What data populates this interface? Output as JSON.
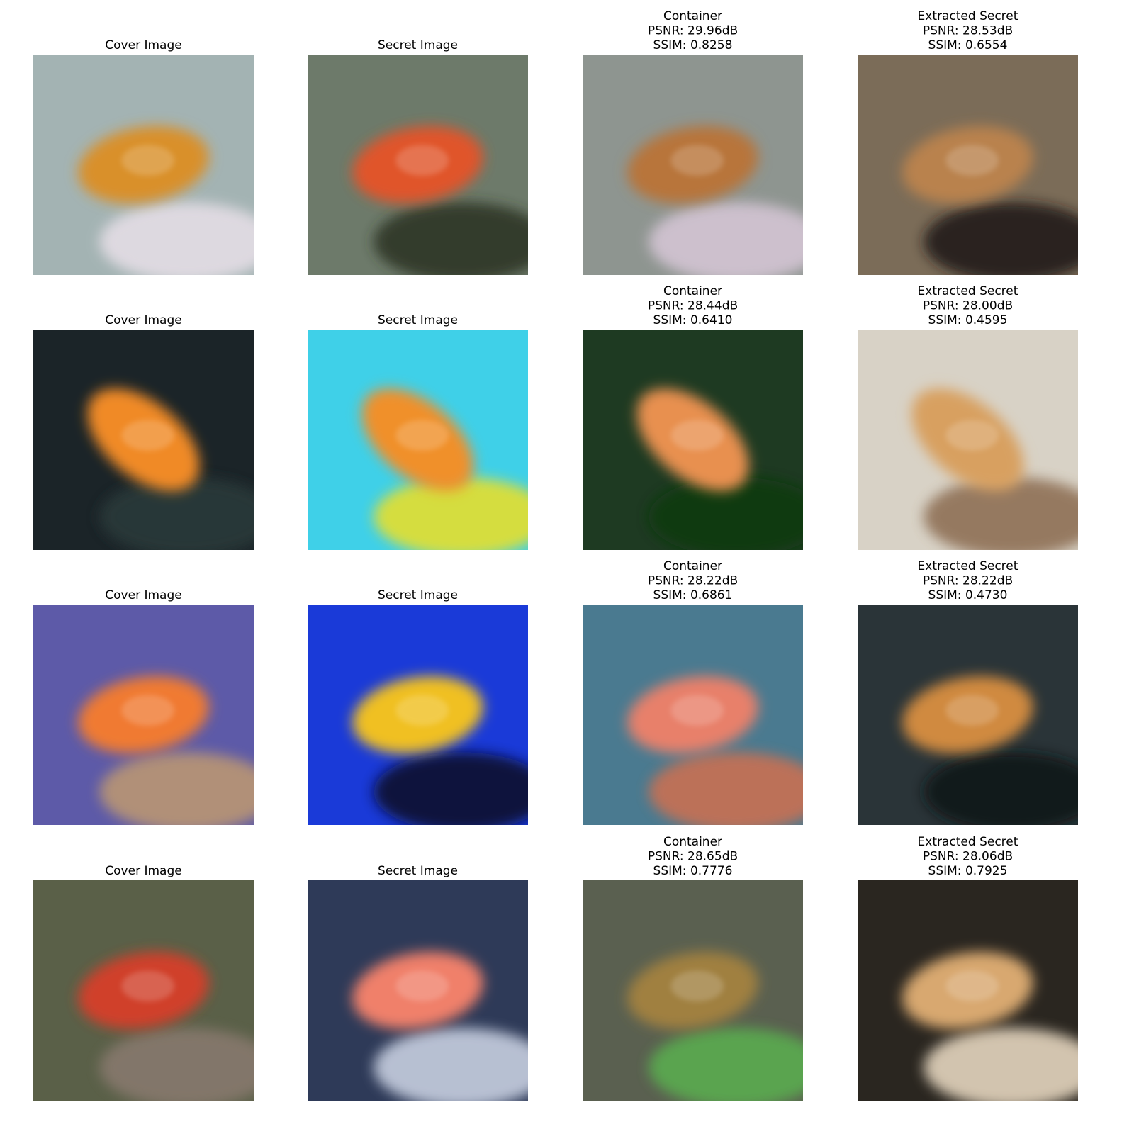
{
  "rows": [
    {
      "panels": [
        {
          "title": [
            "Cover Image"
          ]
        },
        {
          "title": [
            "Secret Image"
          ]
        },
        {
          "title": [
            "Container",
            "PSNR: 29.96dB",
            "SSIM: 0.8258"
          ]
        },
        {
          "title": [
            "Extracted Secret",
            "PSNR: 28.53dB",
            "SSIM: 0.6554"
          ]
        }
      ]
    },
    {
      "panels": [
        {
          "title": [
            "Cover Image"
          ]
        },
        {
          "title": [
            "Secret Image"
          ]
        },
        {
          "title": [
            "Container",
            "PSNR: 28.44dB",
            "SSIM: 0.6410"
          ]
        },
        {
          "title": [
            "Extracted Secret",
            "PSNR: 28.00dB",
            "SSIM: 0.4595"
          ]
        }
      ]
    },
    {
      "panels": [
        {
          "title": [
            "Cover Image"
          ]
        },
        {
          "title": [
            "Secret Image"
          ]
        },
        {
          "title": [
            "Container",
            "PSNR: 28.22dB",
            "SSIM: 0.6861"
          ]
        },
        {
          "title": [
            "Extracted Secret",
            "PSNR: 28.22dB",
            "SSIM: 0.4730"
          ]
        }
      ]
    },
    {
      "panels": [
        {
          "title": [
            "Cover Image"
          ]
        },
        {
          "title": [
            "Secret Image"
          ]
        },
        {
          "title": [
            "Container",
            "PSNR: 28.65dB",
            "SSIM: 0.7776"
          ]
        },
        {
          "title": [
            "Extracted Secret",
            "PSNR: 28.06dB",
            "SSIM: 0.7925"
          ]
        }
      ]
    }
  ]
}
